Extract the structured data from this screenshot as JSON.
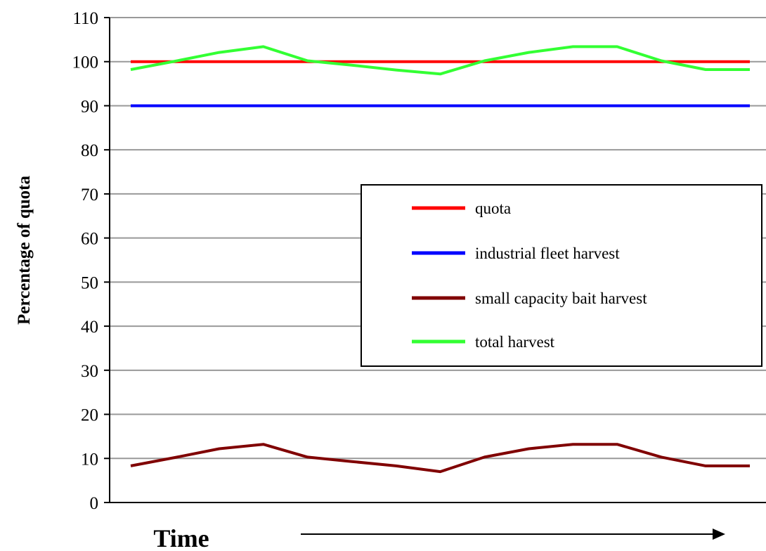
{
  "chart_data": {
    "type": "line",
    "title": "",
    "xlabel": "Time",
    "ylabel": "Percentage of quota",
    "ylim": [
      0,
      110
    ],
    "yticks": [
      0,
      10,
      20,
      30,
      40,
      50,
      60,
      70,
      80,
      90,
      100,
      110
    ],
    "grid": true,
    "legend_position": "center-right",
    "x": [
      0,
      1,
      2,
      3,
      4,
      5,
      6,
      7,
      8,
      9,
      10,
      11,
      12,
      13,
      14
    ],
    "series": [
      {
        "name": "quota",
        "color": "#ff0000",
        "values": [
          100,
          100,
          100,
          100,
          100,
          100,
          100,
          100,
          100,
          100,
          100,
          100,
          100,
          100,
          100
        ]
      },
      {
        "name": "industrial fleet harvest",
        "color": "#0000ff",
        "values": [
          90,
          90,
          90,
          90,
          90,
          90,
          90,
          90,
          90,
          90,
          90,
          90,
          90,
          90,
          90
        ]
      },
      {
        "name": "small capacity bait harvest",
        "color": "#800000",
        "values": [
          8.3,
          10.2,
          12.2,
          13.2,
          10.3,
          9.3,
          8.3,
          7.0,
          10.3,
          12.2,
          13.2,
          13.2,
          10.3,
          8.3,
          8.3
        ]
      },
      {
        "name": "total harvest",
        "color": "#33ff33",
        "values": [
          98.2,
          100.1,
          102.1,
          103.4,
          100.2,
          99.2,
          98.1,
          97.2,
          100.2,
          102.1,
          103.4,
          103.4,
          100.2,
          98.2,
          98.2
        ]
      }
    ]
  }
}
